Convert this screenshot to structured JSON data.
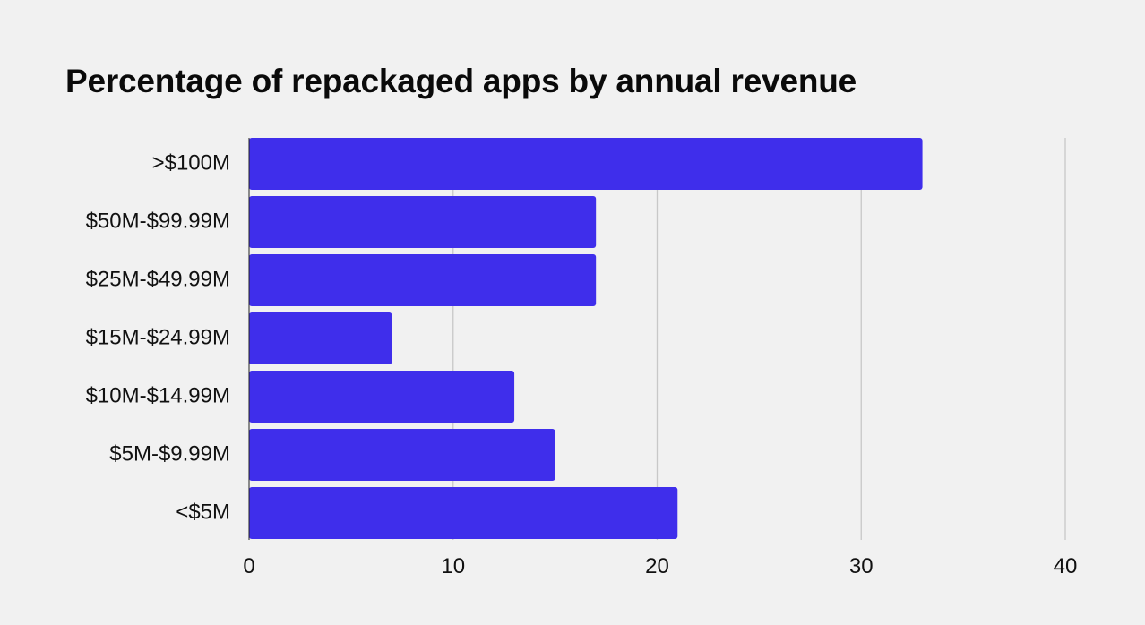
{
  "chart_data": {
    "type": "bar",
    "orientation": "horizontal",
    "title": "Percentage of repackaged apps by annual revenue",
    "categories": [
      ">$100M",
      "$50M-$99.99M",
      "$25M-$49.99M",
      "$15M-$24.99M",
      "$10M-$14.99M",
      "$5M-$9.99M",
      "<$5M"
    ],
    "values": [
      33,
      17,
      17,
      7,
      13,
      15,
      21
    ],
    "xlim": [
      0,
      40
    ],
    "xticks": [
      0,
      10,
      20,
      30,
      40
    ],
    "xlabel": "",
    "ylabel": "",
    "grid": "vertical",
    "legend": "none",
    "bar_color": "#3f2eeb",
    "grid_color": "#c8c8c8"
  }
}
